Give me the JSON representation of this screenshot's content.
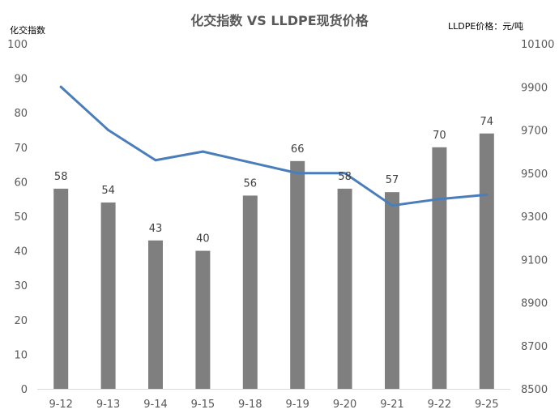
{
  "chart_data": {
    "type": "bar",
    "title": "化交指数 VS LLDPE现货价格",
    "y_left_label": "化交指数",
    "y_right_label": "LLDPE价格：元/吨",
    "categories": [
      "9-12",
      "9-13",
      "9-14",
      "9-15",
      "9-18",
      "9-19",
      "9-20",
      "9-21",
      "9-22",
      "9-25"
    ],
    "series": [
      {
        "type": "bar",
        "axis": "left",
        "color": "#7f7f7f",
        "values": [
          58,
          54,
          43,
          40,
          56,
          66,
          58,
          57,
          70,
          74
        ]
      },
      {
        "type": "line",
        "axis": "right",
        "color": "#4a7ebb",
        "values": [
          9900,
          9700,
          9560,
          9600,
          9550,
          9500,
          9500,
          9350,
          9380,
          9400
        ]
      }
    ],
    "ylim_left": [
      0,
      100
    ],
    "yticks_left": [
      0,
      10,
      20,
      30,
      40,
      50,
      60,
      70,
      80,
      90,
      100
    ],
    "ylim_right": [
      8500,
      10100
    ],
    "yticks_right": [
      8500,
      8700,
      8900,
      9100,
      9300,
      9500,
      9700,
      9900,
      10100
    ],
    "grid": false,
    "legend": "none"
  }
}
